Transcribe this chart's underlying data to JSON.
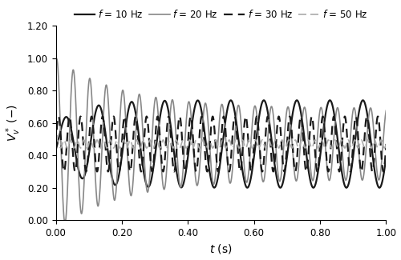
{
  "title": "",
  "xlabel": "$t$ (s)",
  "ylabel": "$V_v^*$ (−)",
  "xlim": [
    0.0,
    1.0
  ],
  "ylim": [
    0.0,
    1.2
  ],
  "yticks": [
    0.0,
    0.2,
    0.4,
    0.6,
    0.8,
    1.0,
    1.2
  ],
  "xticks": [
    0.0,
    0.2,
    0.4,
    0.6,
    0.8,
    1.0
  ],
  "legend_labels": [
    "$f$ = 10 Hz",
    "$f$ = 20 Hz",
    "$f$ = 30 Hz",
    "$f$ = 50 Hz"
  ],
  "background_color": "#ffffff",
  "figsize": [
    5.0,
    3.25
  ],
  "dpi": 100,
  "line_10_color": "#1a1a1a",
  "line_10_lw": 1.6,
  "line_20_color": "#888888",
  "line_20_lw": 1.2,
  "line_30_color": "#1a1a1a",
  "line_30_lw": 1.6,
  "line_50_color": "#aaaaaa",
  "line_50_lw": 1.2
}
